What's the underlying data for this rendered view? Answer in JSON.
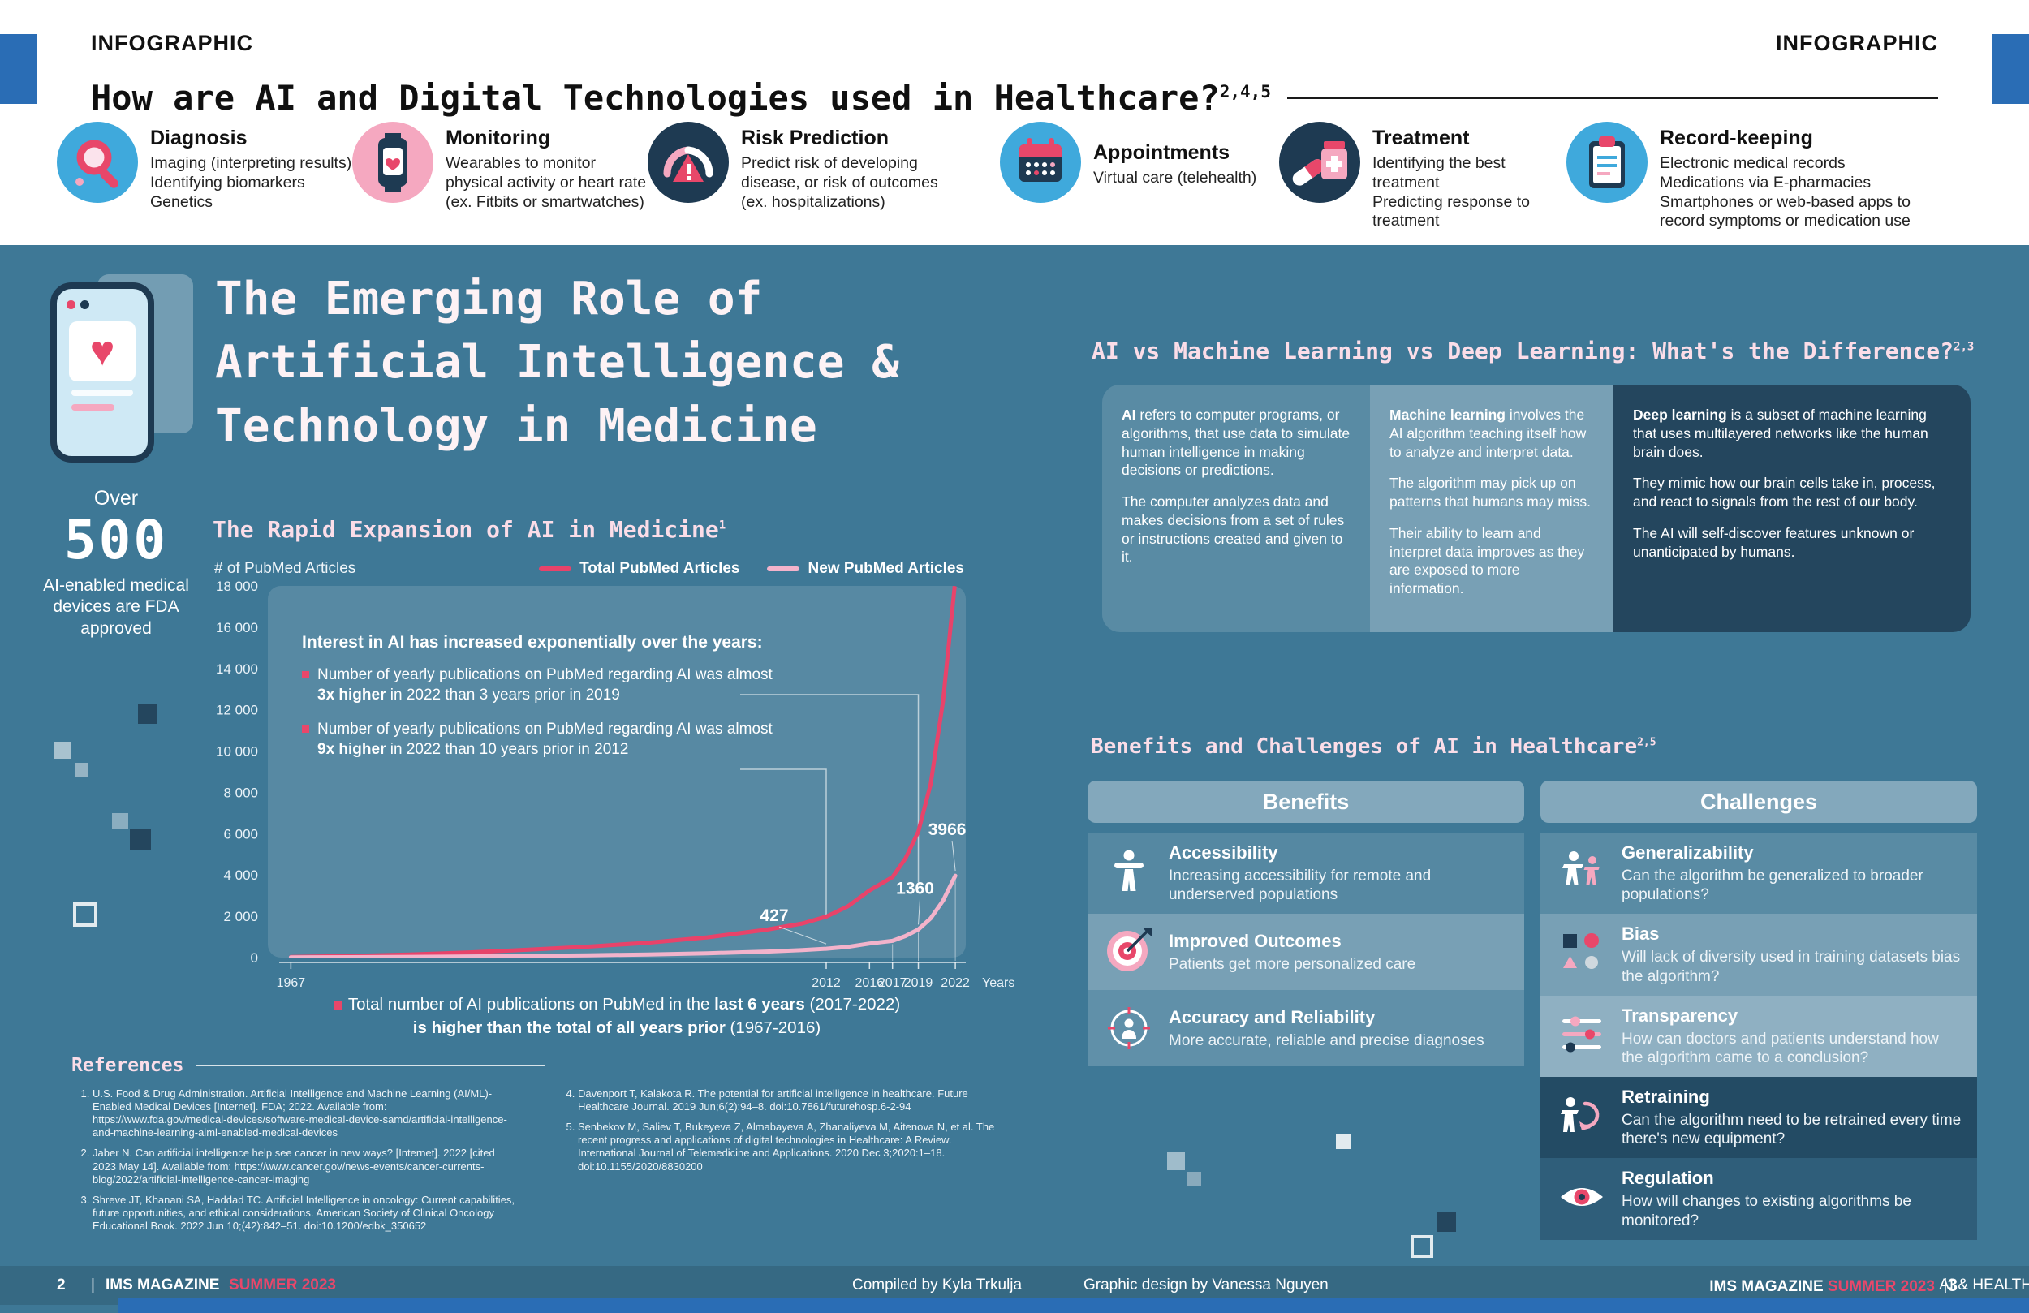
{
  "colors": {
    "background": "#3e7896",
    "accent_pink": "#e8476a",
    "light_pink": "#f5a8c0",
    "accent_blue": "#2a6db5",
    "navy": "#1e3a52",
    "icon_blue": "#3fa9dc"
  },
  "header": {
    "infographic_left": "INFOGRAPHIC",
    "infographic_right": "INFOGRAPHIC",
    "title": "How are AI and Digital Technologies used in Healthcare?",
    "title_sup": "2,4,5",
    "uses": [
      {
        "icon": "diagnosis-magnifier-icon",
        "title": "Diagnosis",
        "desc": "Imaging (interpreting results)\nIdentifying biomarkers\nGenetics"
      },
      {
        "icon": "monitoring-smartwatch-icon",
        "title": "Monitoring",
        "desc": "Wearables to monitor physical activity or heart rate (ex. Fitbits or smartwatches)"
      },
      {
        "icon": "risk-gauge-icon",
        "title": "Risk Prediction",
        "desc": "Predict risk of developing disease, or risk of outcomes (ex. hospitalizations)"
      },
      {
        "icon": "appointments-calendar-icon",
        "title": "Appointments",
        "desc": "Virtual care (telehealth)"
      },
      {
        "icon": "treatment-pills-icon",
        "title": "Treatment",
        "desc": "Identifying the best treatment\nPredicting response to treatment"
      },
      {
        "icon": "records-clipboard-icon",
        "title": "Record-keeping",
        "desc": "Electronic medical records\nMedications via E-pharmacies\nSmartphones or web-based apps to record symptoms or medication use"
      }
    ]
  },
  "left_page": {
    "main_title": "The Emerging Role of\nArtificial Intelligence &\nTechnology in Medicine",
    "stat_over": "Over",
    "stat_number": "500",
    "stat_desc": "AI-enabled medical devices are FDA approved",
    "chart_heading": "The Rapid Expansion of AI in Medicine",
    "chart_heading_sup": "1",
    "caption_l1_pre": "Total number of AI publications on PubMed in the ",
    "caption_l1_bold": "last 6 years",
    "caption_l1_post": " (2017-2022)",
    "caption_l2_bold": "is higher than the total of all years prior",
    "caption_l2_post": " (1967-2016)",
    "references_title": "References",
    "references": [
      "U.S. Food & Drug Administration. Artificial Intelligence and Machine Learning (AI/ML)-Enabled Medical Devices [Internet]. FDA; 2022. Available from: https://www.fda.gov/medical-devices/software-medical-device-samd/artificial-intelligence-and-machine-learning-aiml-enabled-medical-devices",
      "Jaber N. Can artificial intelligence help see cancer in new ways? [Internet]. 2022 [cited 2023 May 14]. Available from: https://www.cancer.gov/news-events/cancer-currents-blog/2022/artificial-intelligence-cancer-imaging",
      "Shreve JT, Khanani SA, Haddad TC. Artificial Intelligence in oncology: Current capabilities, future opportunities, and ethical considerations. American Society of Clinical Oncology Educational Book. 2022 Jun 10;(42):842–51. doi:10.1200/edbk_350652",
      "Davenport T, Kalakota R. The potential for artificial intelligence in healthcare. Future Healthcare Journal. 2019 Jun;6(2):94–8. doi:10.7861/futurehosp.6-2-94",
      "Senbekov M, Saliev T, Bukeyeva Z, Almabayeva A, Zhanaliyeva M, Aitenova N, et al. The recent progress and applications of digital technologies in Healthcare: A Review. International Journal of Telemedicine and Applications. 2020 Dec 3;2020:1–18. doi:10.1155/2020/8830200"
    ]
  },
  "chart_data": {
    "type": "line",
    "title": "The Rapid Expansion of AI in Medicine",
    "ylabel": "# of PubMed Articles",
    "xlabel": "Years",
    "ylim": [
      0,
      18000
    ],
    "yticks": [
      "18 000",
      "16 000",
      "14 000",
      "12 000",
      "10 000",
      "8 000",
      "6 000",
      "4 000",
      "2 000",
      "0"
    ],
    "ytick_values": [
      18000,
      16000,
      14000,
      12000,
      10000,
      8000,
      6000,
      4000,
      2000,
      0
    ],
    "xtick_years": [
      1967,
      2012,
      2016,
      2017,
      2019,
      2022
    ],
    "legend_position": "top-right",
    "grid": false,
    "legend": [
      {
        "label": "Total PubMed Articles",
        "color": "#e8436a"
      },
      {
        "label": "New PubMed Articles",
        "color": "#f3b3cb"
      }
    ],
    "series": [
      {
        "name": "Total PubMed Articles",
        "color": "#e8436a",
        "points": [
          [
            1967,
            30
          ],
          [
            1972,
            80
          ],
          [
            1977,
            150
          ],
          [
            1982,
            250
          ],
          [
            1987,
            380
          ],
          [
            1992,
            530
          ],
          [
            1997,
            720
          ],
          [
            2002,
            980
          ],
          [
            2007,
            1350
          ],
          [
            2010,
            1650
          ],
          [
            2012,
            1980
          ],
          [
            2014,
            2480
          ],
          [
            2016,
            3250
          ],
          [
            2017,
            3900
          ],
          [
            2018,
            4800
          ],
          [
            2019,
            6100
          ],
          [
            2020,
            8400
          ],
          [
            2021,
            12400
          ],
          [
            2022,
            18300
          ]
        ]
      },
      {
        "name": "New PubMed Articles",
        "color": "#f3b3cb",
        "points": [
          [
            1967,
            10
          ],
          [
            1972,
            20
          ],
          [
            1977,
            35
          ],
          [
            1982,
            55
          ],
          [
            1987,
            80
          ],
          [
            1992,
            110
          ],
          [
            1997,
            150
          ],
          [
            2002,
            210
          ],
          [
            2007,
            290
          ],
          [
            2010,
            360
          ],
          [
            2012,
            427
          ],
          [
            2014,
            520
          ],
          [
            2016,
            680
          ],
          [
            2017,
            810
          ],
          [
            2018,
            1040
          ],
          [
            2019,
            1360
          ],
          [
            2020,
            1900
          ],
          [
            2021,
            2750
          ],
          [
            2022,
            3966
          ]
        ]
      }
    ],
    "point_labels": [
      {
        "text": "427",
        "year": 2012,
        "value": 427
      },
      {
        "text": "1360",
        "year": 2019,
        "value": 1360
      },
      {
        "text": "3966",
        "year": 2022,
        "value": 3966
      }
    ],
    "annotation_title": "Interest in AI has increased exponentially over the years:",
    "annotations": [
      {
        "pre": "Number of yearly publications on PubMed regarding AI was almost ",
        "bold": "3x higher",
        "post": " in 2022 than 3 years prior in 2019"
      },
      {
        "pre": "Number of yearly publications on PubMed regarding AI was almost ",
        "bold": "9x higher",
        "post": " in 2022 than 10 years prior in 2012"
      }
    ]
  },
  "right_page": {
    "compare_title": "AI vs Machine Learning vs Deep Learning: What's the Difference?",
    "compare_sup": "2,3",
    "panels": [
      {
        "bold": "AI",
        "rest": " refers to computer programs, or algorithms, that use data to simulate human intelligence in making decisions or predictions.",
        "para2": "The computer analyzes data and makes decisions from a set of rules or instructions created and given to it.",
        "para3": ""
      },
      {
        "bold": "Machine learning",
        "rest": " involves the AI algorithm teaching itself how to analyze and interpret data.",
        "para2": "The algorithm may pick up on patterns that humans may miss.",
        "para3": "Their ability to learn and interpret data improves as they are exposed to more information."
      },
      {
        "bold": "Deep learning",
        "rest": " is a subset of machine learning that uses multilayered networks like the human brain does.",
        "para2": "They mimic how our brain cells take in, process, and react to signals from the rest of our body.",
        "para3": "The AI will self-discover features unknown or unanticipated by humans."
      }
    ],
    "bc_title": "Benefits and Challenges of AI in Healthcare",
    "bc_sup": "2,5",
    "benefits_header": "Benefits",
    "challenges_header": "Challenges",
    "benefits": [
      {
        "icon": "accessibility-person-icon",
        "title": "Accessibility",
        "desc": "Increasing accessibility for remote and underserved populations"
      },
      {
        "icon": "target-icon",
        "title": "Improved Outcomes",
        "desc": "Patients get more personalized care"
      },
      {
        "icon": "accuracy-crosshair-icon",
        "title": "Accuracy and Reliability",
        "desc": "More accurate, reliable and precise diagnoses"
      }
    ],
    "challenges": [
      {
        "icon": "two-people-icon",
        "title": "Generalizability",
        "desc": "Can the algorithm be generalized to broader populations?"
      },
      {
        "icon": "shapes-icon",
        "title": "Bias",
        "desc": "Will lack of diversity used in training datasets bias the algorithm?"
      },
      {
        "icon": "sliders-icon",
        "title": "Transparency",
        "desc": "How can doctors and patients understand how the algorithm came to a conclusion?"
      },
      {
        "icon": "retrain-arrow-icon",
        "title": "Retraining",
        "desc": "Can the algorithm need to be retrained every time there's new equipment?"
      },
      {
        "icon": "eye-icon",
        "title": "Regulation",
        "desc": "How will changes to existing algorithms be monitored?"
      }
    ]
  },
  "footer": {
    "left_num": "2",
    "left_sep": "|",
    "left_mag": "IMS MAGAZINE",
    "left_issue": "SUMMER 2023",
    "compiled": "Compiled by Kyla Trkulja",
    "design": "Graphic design by Vanessa Nguyen",
    "right_mag": "IMS MAGAZINE",
    "right_issue": "SUMMER 2023",
    "right_section": "AI & HEALTH IN THE DIGITAL AGE",
    "right_sep": "|",
    "right_num": "3"
  }
}
